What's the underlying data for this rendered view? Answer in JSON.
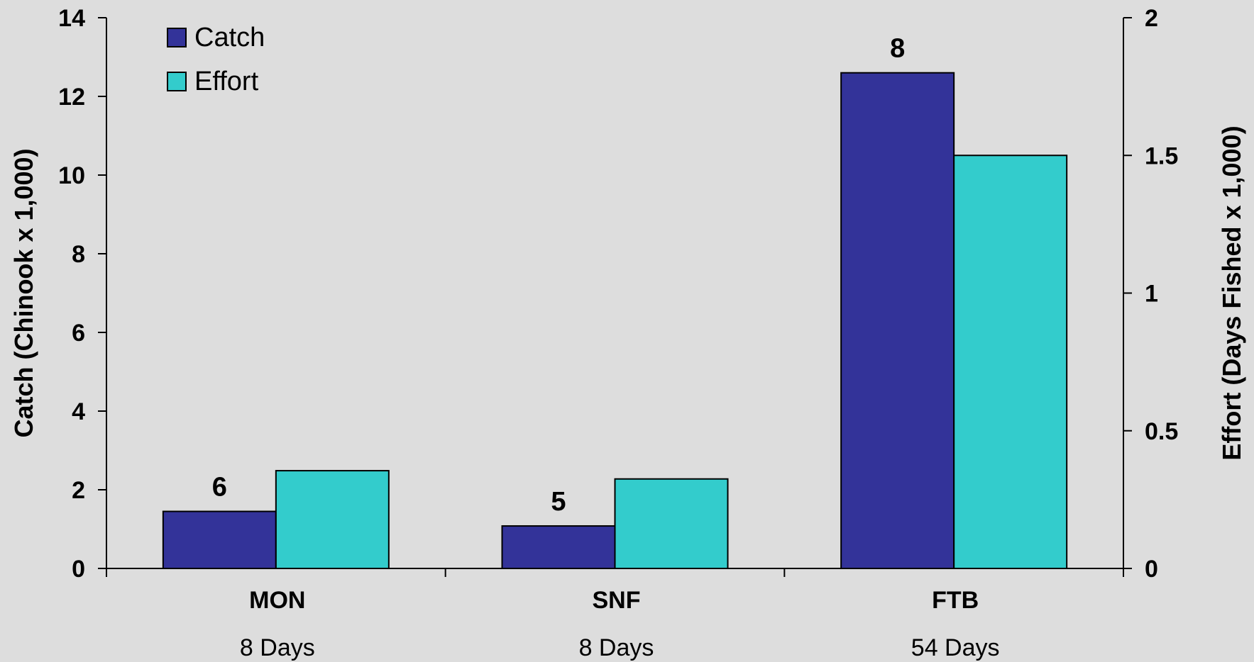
{
  "chart_data": {
    "type": "bar",
    "categories": [
      "MON",
      "SNF",
      "FTB"
    ],
    "category_sublabels": [
      "8 Days",
      "8 Days",
      "54 Days"
    ],
    "series": [
      {
        "name": "Catch",
        "axis": "left",
        "color": "#333399",
        "values": [
          1.45,
          1.08,
          12.6
        ]
      },
      {
        "name": "Effort",
        "axis": "right",
        "color": "#33CCCC",
        "values": [
          0.355,
          0.325,
          1.5
        ]
      }
    ],
    "data_labels": [
      "6",
      "5",
      "8"
    ],
    "ylabel": "Catch (Chinook x 1,000)",
    "ylabel_right": "Effort (Days Fished x 1,000)",
    "ylim": [
      0,
      14
    ],
    "ylim_right": [
      0,
      2
    ],
    "yticks": [
      "0",
      "2",
      "4",
      "6",
      "8",
      "10",
      "12",
      "14"
    ],
    "yticks_right": [
      "0",
      "0.5",
      "1",
      "1.5",
      "2"
    ],
    "legend": "top-left",
    "grid": false,
    "background": "#DDDDDD"
  }
}
